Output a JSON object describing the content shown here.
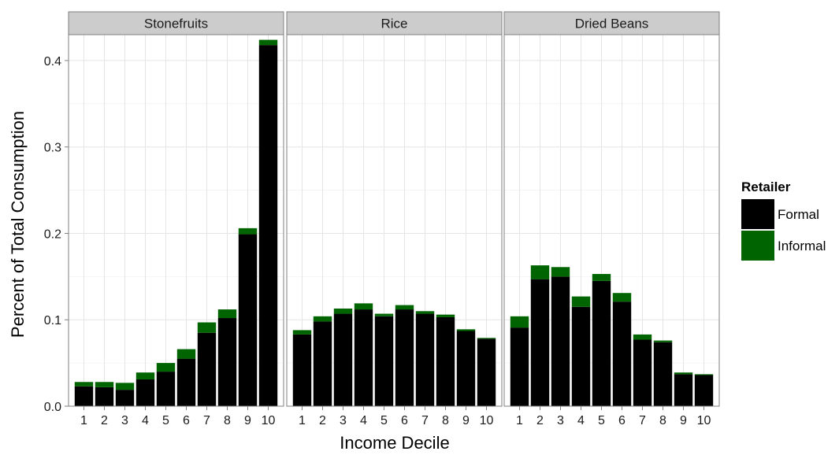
{
  "chart_data": {
    "type": "bar",
    "stacked": true,
    "xlabel": "Income Decile",
    "ylabel": "Percent of Total Consumption",
    "ylim": [
      0,
      0.43
    ],
    "yticks": [
      "0.0",
      "0.1",
      "0.2",
      "0.3",
      "0.4"
    ],
    "categories": [
      "1",
      "2",
      "3",
      "4",
      "5",
      "6",
      "7",
      "8",
      "9",
      "10"
    ],
    "grid": true,
    "legend": {
      "title": "Retailer",
      "position": "right",
      "items": [
        {
          "label": "Formal",
          "color": "#000000"
        },
        {
          "label": "Informal",
          "color": "#006400"
        }
      ]
    },
    "panels": [
      {
        "title": "Stonefruits",
        "series": [
          {
            "name": "Formal",
            "values": [
              0.023,
              0.022,
              0.019,
              0.031,
              0.04,
              0.055,
              0.085,
              0.102,
              0.199,
              0.418
            ]
          },
          {
            "name": "Informal",
            "values": [
              0.005,
              0.006,
              0.008,
              0.008,
              0.01,
              0.011,
              0.012,
              0.01,
              0.007,
              0.006
            ]
          }
        ]
      },
      {
        "title": "Rice",
        "series": [
          {
            "name": "Formal",
            "values": [
              0.083,
              0.098,
              0.107,
              0.112,
              0.104,
              0.112,
              0.107,
              0.103,
              0.087,
              0.078
            ]
          },
          {
            "name": "Informal",
            "values": [
              0.005,
              0.006,
              0.006,
              0.007,
              0.003,
              0.005,
              0.003,
              0.003,
              0.002,
              0.001
            ]
          }
        ]
      },
      {
        "title": "Dried Beans",
        "series": [
          {
            "name": "Formal",
            "values": [
              0.091,
              0.147,
              0.15,
              0.115,
              0.145,
              0.121,
              0.077,
              0.074,
              0.037,
              0.036
            ]
          },
          {
            "name": "Informal",
            "values": [
              0.013,
              0.016,
              0.011,
              0.012,
              0.008,
              0.01,
              0.006,
              0.002,
              0.002,
              0.001
            ]
          }
        ]
      }
    ]
  }
}
